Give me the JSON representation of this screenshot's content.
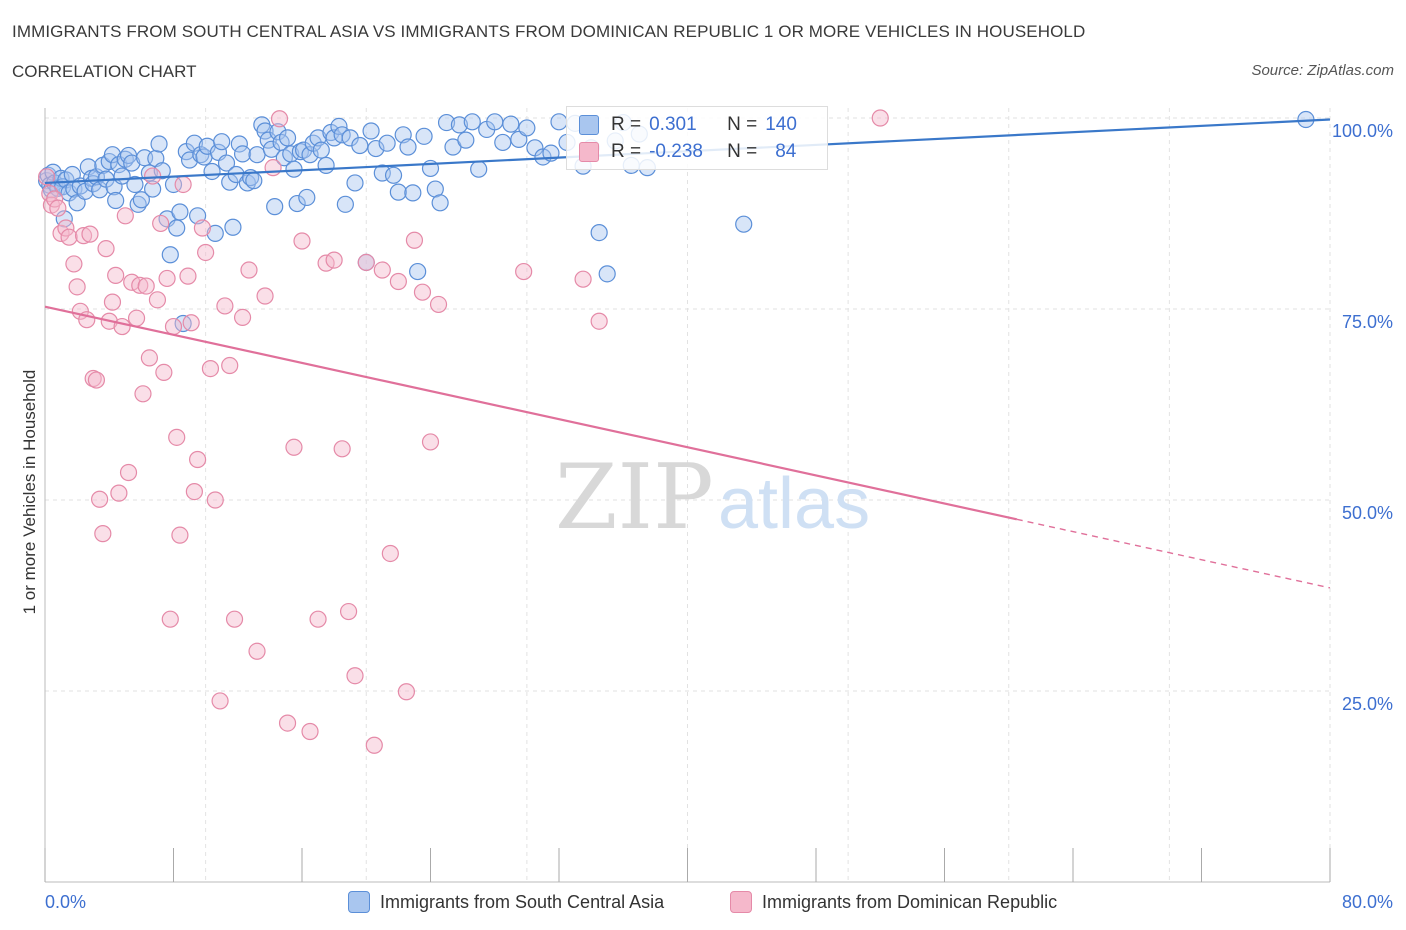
{
  "header": {
    "title": "IMMIGRANTS FROM SOUTH CENTRAL ASIA VS IMMIGRANTS FROM DOMINICAN REPUBLIC 1 OR MORE VEHICLES IN HOUSEHOLD",
    "subtitle": "CORRELATION CHART",
    "source": "Source: ZipAtlas.com"
  },
  "stats_legend": {
    "blue": {
      "r_label": "R =",
      "r_value": "0.301",
      "n_label": "N =",
      "n_value": "140"
    },
    "pink": {
      "r_label": "R =",
      "r_value": "-0.238",
      "n_label": "N =",
      "n_value": "84"
    }
  },
  "colors": {
    "blue_fill": "#a9c6ef",
    "blue_stroke": "#5b8fd8",
    "blue_line": "#3a78c9",
    "pink_fill": "#f5b8cb",
    "pink_stroke": "#e58aa8",
    "pink_line": "#e0709a",
    "tick_label": "#3d6fd0",
    "grid": "#e2e2e2"
  },
  "watermark": {
    "zip": "ZIP",
    "atlas": "atlas"
  },
  "chart_data": {
    "type": "scatter",
    "xlabel": "",
    "ylabel": "1 or more Vehicles in Household",
    "xlim": [
      0,
      80
    ],
    "ylim": [
      0,
      100
    ],
    "x_tick_labels": [
      "0.0%",
      "80.0%"
    ],
    "y_ticks": [
      25,
      50,
      75,
      100
    ],
    "y_tick_labels": [
      "25.0%",
      "50.0%",
      "75.0%",
      "100.0%"
    ],
    "grid": true,
    "legend_position": "bottom",
    "series": [
      {
        "name": "Immigrants from South Central Asia",
        "color": "blue",
        "trend": {
          "x": [
            0,
            80
          ],
          "y": [
            91.5,
            99.8
          ],
          "dashed_from": null
        },
        "points": [
          [
            0.1,
            91.8
          ],
          [
            0.2,
            92.5
          ],
          [
            0.3,
            91.2
          ],
          [
            0.4,
            90.6
          ],
          [
            0.5,
            92.9
          ],
          [
            0.6,
            91.5
          ],
          [
            0.8,
            90.8
          ],
          [
            1.0,
            92.1
          ],
          [
            1.1,
            91.0
          ],
          [
            1.2,
            86.8
          ],
          [
            1.3,
            91.9
          ],
          [
            1.5,
            90.2
          ],
          [
            1.7,
            92.6
          ],
          [
            1.8,
            90.7
          ],
          [
            2.0,
            88.9
          ],
          [
            2.2,
            91.1
          ],
          [
            2.5,
            90.4
          ],
          [
            2.7,
            93.6
          ],
          [
            2.9,
            92.1
          ],
          [
            3.0,
            91.4
          ],
          [
            3.2,
            92.3
          ],
          [
            3.4,
            90.6
          ],
          [
            3.6,
            93.8
          ],
          [
            3.8,
            92.0
          ],
          [
            4.0,
            94.3
          ],
          [
            4.2,
            95.2
          ],
          [
            4.3,
            91.0
          ],
          [
            4.4,
            89.2
          ],
          [
            4.6,
            93.9
          ],
          [
            4.8,
            92.4
          ],
          [
            5.0,
            94.6
          ],
          [
            5.2,
            95.1
          ],
          [
            5.4,
            94.1
          ],
          [
            5.6,
            91.3
          ],
          [
            5.8,
            88.7
          ],
          [
            6.0,
            89.3
          ],
          [
            6.2,
            94.8
          ],
          [
            6.5,
            92.8
          ],
          [
            6.7,
            90.7
          ],
          [
            6.9,
            94.7
          ],
          [
            7.1,
            96.6
          ],
          [
            7.3,
            93.1
          ],
          [
            7.6,
            86.8
          ],
          [
            7.8,
            82.1
          ],
          [
            8.0,
            91.3
          ],
          [
            8.2,
            85.6
          ],
          [
            8.4,
            87.7
          ],
          [
            8.6,
            73.1
          ],
          [
            8.8,
            95.6
          ],
          [
            9.0,
            94.5
          ],
          [
            9.3,
            96.7
          ],
          [
            9.5,
            87.2
          ],
          [
            9.7,
            95.2
          ],
          [
            9.9,
            94.9
          ],
          [
            10.1,
            96.3
          ],
          [
            10.4,
            93.0
          ],
          [
            10.6,
            84.9
          ],
          [
            10.8,
            95.5
          ],
          [
            11.0,
            96.9
          ],
          [
            11.3,
            94.1
          ],
          [
            11.5,
            91.6
          ],
          [
            11.7,
            85.7
          ],
          [
            11.9,
            92.6
          ],
          [
            12.1,
            96.6
          ],
          [
            12.3,
            95.3
          ],
          [
            12.6,
            91.5
          ],
          [
            12.8,
            92.2
          ],
          [
            13.0,
            91.8
          ],
          [
            13.2,
            95.2
          ],
          [
            13.5,
            99.1
          ],
          [
            13.7,
            98.3
          ],
          [
            13.9,
            97.1
          ],
          [
            14.1,
            95.9
          ],
          [
            14.3,
            88.4
          ],
          [
            14.5,
            98.2
          ],
          [
            14.7,
            96.8
          ],
          [
            14.9,
            94.8
          ],
          [
            15.1,
            97.4
          ],
          [
            15.3,
            95.3
          ],
          [
            15.5,
            93.3
          ],
          [
            15.7,
            88.8
          ],
          [
            15.9,
            95.6
          ],
          [
            16.1,
            95.8
          ],
          [
            16.3,
            89.6
          ],
          [
            16.5,
            95.2
          ],
          [
            16.7,
            96.7
          ],
          [
            17.0,
            97.4
          ],
          [
            17.2,
            95.8
          ],
          [
            17.5,
            93.8
          ],
          [
            17.8,
            98.1
          ],
          [
            18.0,
            97.4
          ],
          [
            18.3,
            98.9
          ],
          [
            18.5,
            97.8
          ],
          [
            18.7,
            88.7
          ],
          [
            19.0,
            97.4
          ],
          [
            19.3,
            91.5
          ],
          [
            19.6,
            96.4
          ],
          [
            20.0,
            81.1
          ],
          [
            20.3,
            98.3
          ],
          [
            20.6,
            96.0
          ],
          [
            21.0,
            92.8
          ],
          [
            21.3,
            96.7
          ],
          [
            21.7,
            92.5
          ],
          [
            22.0,
            90.3
          ],
          [
            22.3,
            97.8
          ],
          [
            22.6,
            96.2
          ],
          [
            22.9,
            90.2
          ],
          [
            23.2,
            79.9
          ],
          [
            23.6,
            97.6
          ],
          [
            24.0,
            93.4
          ],
          [
            24.3,
            90.7
          ],
          [
            24.6,
            88.9
          ],
          [
            25.0,
            99.4
          ],
          [
            25.4,
            96.2
          ],
          [
            25.8,
            99.1
          ],
          [
            26.2,
            97.1
          ],
          [
            26.6,
            99.5
          ],
          [
            27.0,
            93.3
          ],
          [
            27.5,
            98.5
          ],
          [
            28.0,
            99.5
          ],
          [
            28.5,
            96.8
          ],
          [
            29.0,
            99.2
          ],
          [
            29.5,
            97.2
          ],
          [
            30.0,
            98.7
          ],
          [
            30.5,
            96.1
          ],
          [
            31.0,
            94.9
          ],
          [
            31.5,
            95.4
          ],
          [
            32.0,
            99.5
          ],
          [
            32.5,
            96.8
          ],
          [
            33.0,
            99.3
          ],
          [
            33.5,
            93.7
          ],
          [
            34.0,
            96.1
          ],
          [
            34.5,
            85.0
          ],
          [
            35.0,
            79.6
          ],
          [
            35.5,
            97.0
          ],
          [
            36.0,
            99.4
          ],
          [
            36.5,
            93.8
          ],
          [
            37.0,
            97.9
          ],
          [
            37.5,
            93.5
          ],
          [
            43.5,
            86.1
          ],
          [
            78.5,
            99.8
          ]
        ]
      },
      {
        "name": "Immigrants from Dominican Republic",
        "color": "pink",
        "trend": {
          "x": [
            0,
            80
          ],
          "y": [
            75.3,
            38.5
          ],
          "dashed_from": 60.5
        },
        "points": [
          [
            0.1,
            92.3
          ],
          [
            0.3,
            90.1
          ],
          [
            0.4,
            88.6
          ],
          [
            0.6,
            89.4
          ],
          [
            0.8,
            88.2
          ],
          [
            1.0,
            84.9
          ],
          [
            1.3,
            85.6
          ],
          [
            1.5,
            84.4
          ],
          [
            1.8,
            80.9
          ],
          [
            2.0,
            77.9
          ],
          [
            2.2,
            74.7
          ],
          [
            2.4,
            84.6
          ],
          [
            2.6,
            73.6
          ],
          [
            2.8,
            84.8
          ],
          [
            3.0,
            65.9
          ],
          [
            3.2,
            65.7
          ],
          [
            3.4,
            50.1
          ],
          [
            3.6,
            45.6
          ],
          [
            3.8,
            82.9
          ],
          [
            4.0,
            73.4
          ],
          [
            4.2,
            75.9
          ],
          [
            4.4,
            79.4
          ],
          [
            4.6,
            50.9
          ],
          [
            4.8,
            72.7
          ],
          [
            5.0,
            87.2
          ],
          [
            5.2,
            53.6
          ],
          [
            5.4,
            78.5
          ],
          [
            5.7,
            73.8
          ],
          [
            5.9,
            78.1
          ],
          [
            6.1,
            63.9
          ],
          [
            6.3,
            78.0
          ],
          [
            6.5,
            68.6
          ],
          [
            6.7,
            92.4
          ],
          [
            7.0,
            76.2
          ],
          [
            7.2,
            86.2
          ],
          [
            7.4,
            66.7
          ],
          [
            7.6,
            79.0
          ],
          [
            7.8,
            34.4
          ],
          [
            8.0,
            72.7
          ],
          [
            8.2,
            58.2
          ],
          [
            8.4,
            45.4
          ],
          [
            8.6,
            91.3
          ],
          [
            8.9,
            79.3
          ],
          [
            9.1,
            73.2
          ],
          [
            9.3,
            51.1
          ],
          [
            9.5,
            55.3
          ],
          [
            9.8,
            85.6
          ],
          [
            10.0,
            82.4
          ],
          [
            10.3,
            67.2
          ],
          [
            10.6,
            50.0
          ],
          [
            10.9,
            23.7
          ],
          [
            11.2,
            75.4
          ],
          [
            11.5,
            67.6
          ],
          [
            11.8,
            34.4
          ],
          [
            12.3,
            73.9
          ],
          [
            12.7,
            80.1
          ],
          [
            13.2,
            30.2
          ],
          [
            13.7,
            76.7
          ],
          [
            14.2,
            93.5
          ],
          [
            14.6,
            99.9
          ],
          [
            15.1,
            20.8
          ],
          [
            15.5,
            56.9
          ],
          [
            16.0,
            83.9
          ],
          [
            16.5,
            19.7
          ],
          [
            17.0,
            34.4
          ],
          [
            17.5,
            81.0
          ],
          [
            18.0,
            81.4
          ],
          [
            18.5,
            56.7
          ],
          [
            18.9,
            35.4
          ],
          [
            19.3,
            27.0
          ],
          [
            20.0,
            81.1
          ],
          [
            20.5,
            17.9
          ],
          [
            21.0,
            80.1
          ],
          [
            21.5,
            43.0
          ],
          [
            22.0,
            78.6
          ],
          [
            22.5,
            24.9
          ],
          [
            23.0,
            84.0
          ],
          [
            23.5,
            77.2
          ],
          [
            24.0,
            57.6
          ],
          [
            24.5,
            75.6
          ],
          [
            29.8,
            79.9
          ],
          [
            33.5,
            78.9
          ],
          [
            34.5,
            73.4
          ],
          [
            52.0,
            100.0
          ]
        ]
      }
    ]
  }
}
